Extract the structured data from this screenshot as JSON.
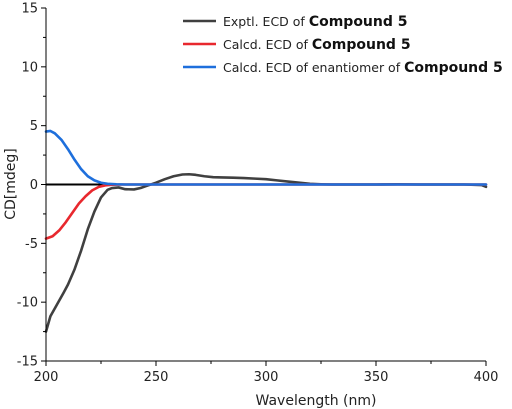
{
  "chart_data": {
    "type": "line",
    "title": "",
    "xlabel": "Wavelength (nm)",
    "ylabel": "CD[mdeg]",
    "xlim": [
      200,
      400
    ],
    "ylim": [
      -15,
      15
    ],
    "xticks": [
      200,
      250,
      300,
      350,
      400
    ],
    "yticks": [
      -15,
      -10,
      -5,
      0,
      5,
      10,
      15
    ],
    "grid": false,
    "legend_position": "top-right",
    "series": [
      {
        "legend_prefix": "Exptl. ECD of",
        "legend_compound": "Compound 5",
        "color": "#404040",
        "x": [
          200,
          202,
          205,
          208,
          210,
          213,
          216,
          219,
          222,
          225,
          228,
          230,
          233,
          236,
          240,
          243,
          246,
          250,
          254,
          258,
          262,
          265,
          268,
          272,
          276,
          280,
          285,
          290,
          295,
          300,
          305,
          310,
          315,
          320,
          325,
          330,
          335,
          340,
          350,
          360,
          370,
          380,
          390,
          398,
          400
        ],
        "y": [
          -12.5,
          -11.2,
          -10.2,
          -9.2,
          -8.5,
          -7.2,
          -5.6,
          -3.8,
          -2.3,
          -1.1,
          -0.45,
          -0.3,
          -0.25,
          -0.4,
          -0.42,
          -0.3,
          -0.1,
          0.15,
          0.45,
          0.7,
          0.85,
          0.87,
          0.82,
          0.7,
          0.62,
          0.6,
          0.58,
          0.55,
          0.5,
          0.45,
          0.35,
          0.25,
          0.15,
          0.06,
          0.02,
          0.0,
          0.0,
          0.0,
          0.0,
          0.02,
          0.0,
          0.0,
          0.0,
          -0.05,
          -0.2
        ]
      },
      {
        "legend_prefix": "Calcd. ECD of",
        "legend_compound": "Compound 5",
        "color": "#e8282e",
        "x": [
          200,
          203,
          206,
          209,
          212,
          215,
          218,
          221,
          224,
          227,
          230,
          235,
          240,
          250,
          260,
          280,
          300,
          350,
          400
        ],
        "y": [
          -4.6,
          -4.4,
          -3.9,
          -3.2,
          -2.4,
          -1.6,
          -1.0,
          -0.5,
          -0.2,
          -0.07,
          -0.02,
          0,
          0,
          0,
          0,
          0,
          0,
          0,
          0
        ]
      },
      {
        "legend_prefix": "Calcd. ECD of enantiomer of",
        "legend_compound": "Compound 5",
        "color": "#1e6fdc",
        "x": [
          200,
          202,
          204,
          207,
          210,
          213,
          216,
          219,
          222,
          225,
          228,
          232,
          236,
          240,
          250,
          260,
          280,
          300,
          350,
          400
        ],
        "y": [
          4.5,
          4.55,
          4.35,
          3.8,
          3.0,
          2.1,
          1.3,
          0.7,
          0.35,
          0.15,
          0.06,
          0.02,
          0,
          0,
          0,
          0,
          0,
          0,
          0,
          0
        ]
      }
    ]
  }
}
